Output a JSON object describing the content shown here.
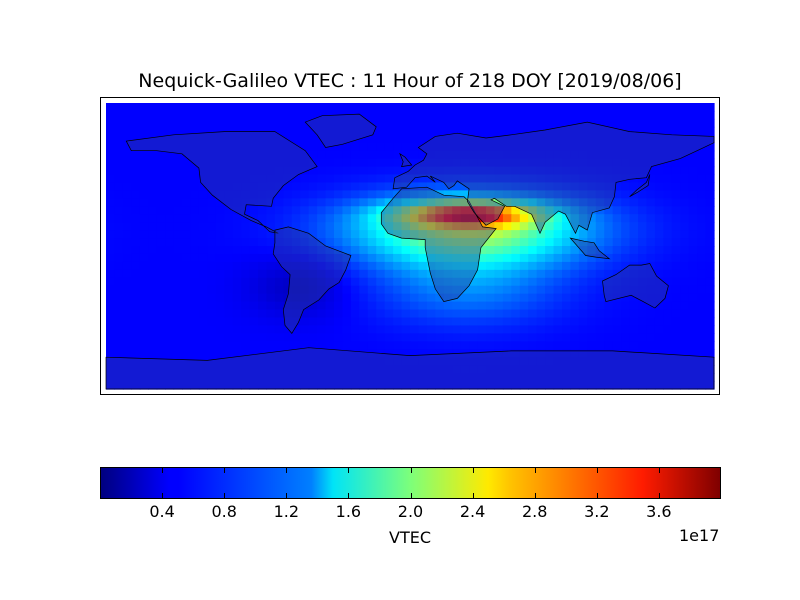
{
  "title": "Nequick-Galileo VTEC : 11 Hour of 218 DOY [2019/08/06]",
  "colorbar": {
    "label": "VTEC",
    "multiplier": "1e17",
    "ticks": [
      "0.4",
      "0.8",
      "1.2",
      "1.6",
      "2.0",
      "2.4",
      "2.8",
      "3.2",
      "3.6"
    ],
    "min": 0.0,
    "max": 4.0,
    "colormap": "jet"
  },
  "chart_data": {
    "type": "heatmap",
    "title": "Nequick-Galileo VTEC : 11 Hour of 218 DOY [2019/08/06]",
    "projection": "equirectangular",
    "lon_range": [
      -180,
      180
    ],
    "lat_range": [
      -90,
      90
    ],
    "colorbar_label": "VTEC",
    "colorbar_range": [
      0.0,
      4.0
    ],
    "colorbar_multiplier": "1e17",
    "colormap": "jet",
    "units": "1e17",
    "ionization_peak": {
      "lon": [
        10,
        110
      ],
      "lat": [
        5,
        35
      ],
      "peak_lon": 35,
      "peak_lat": 20,
      "peak_value": 4.0
    },
    "background_level": 0.5
  }
}
